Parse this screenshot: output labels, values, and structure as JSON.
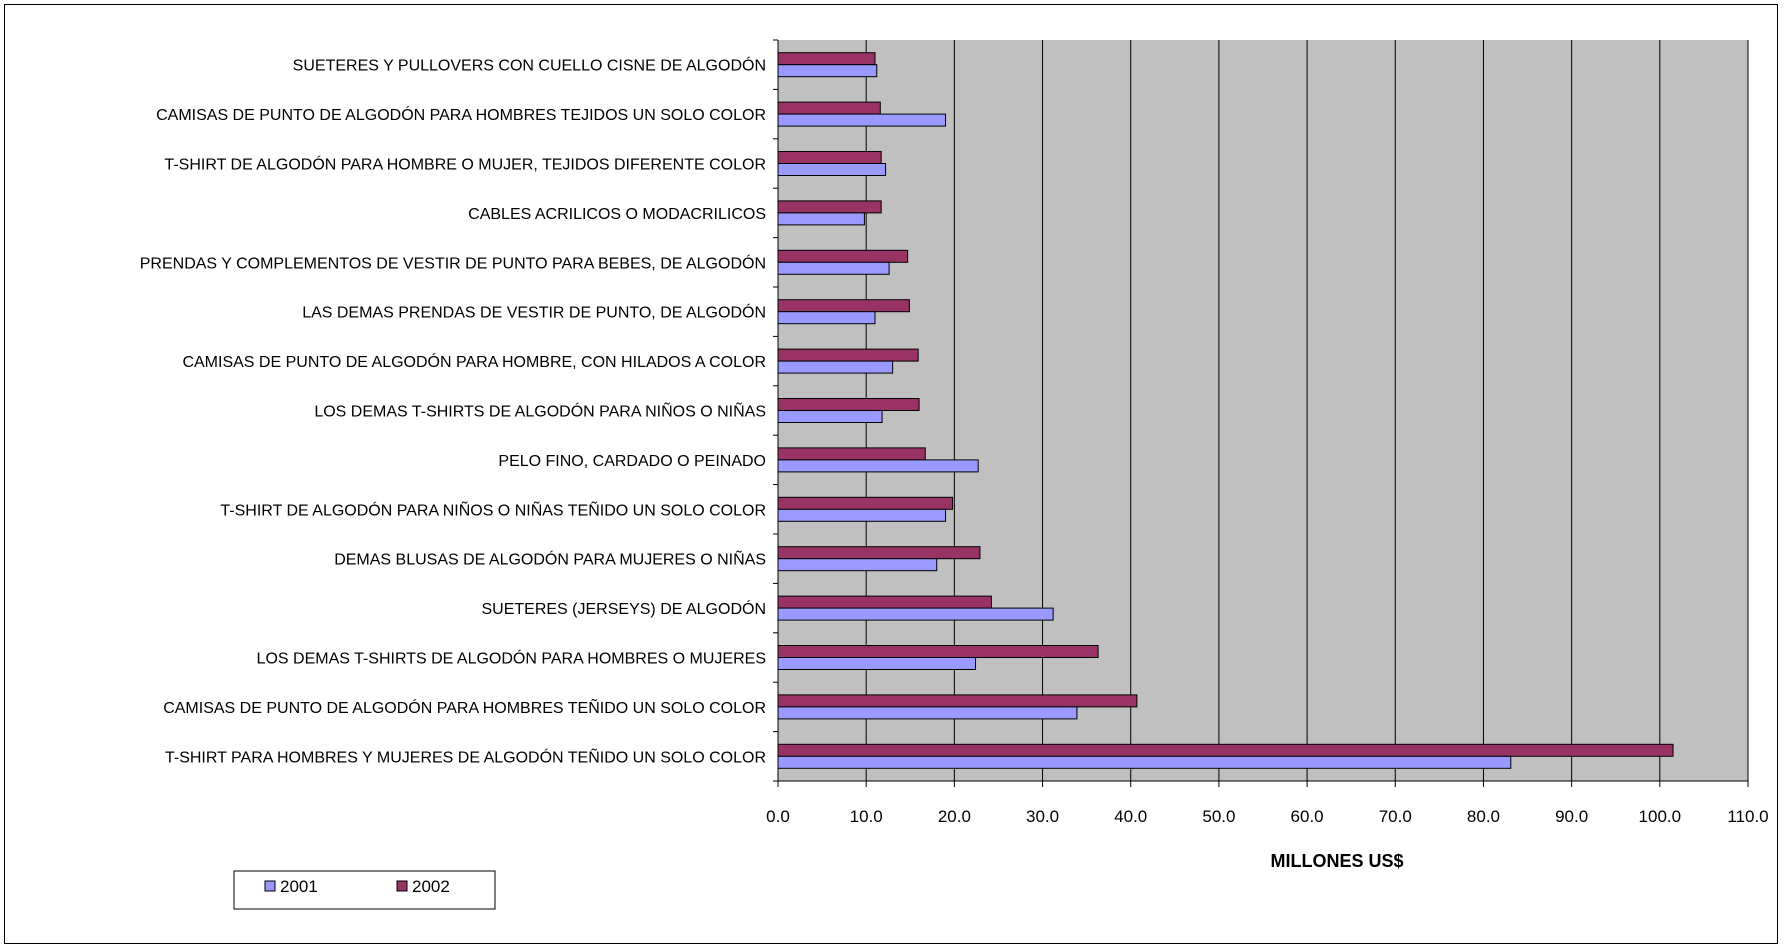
{
  "chart_data": {
    "type": "bar",
    "orientation": "horizontal",
    "categories": [
      "SUETERES Y PULLOVERS CON CUELLO CISNE DE ALGODÓN",
      "CAMISAS DE PUNTO DE ALGODÓN PARA HOMBRES TEJIDOS UN SOLO COLOR",
      "T-SHIRT DE ALGODÓN PARA HOMBRE O MUJER, TEJIDOS DIFERENTE COLOR",
      "CABLES ACRILICOS O MODACRILICOS",
      "PRENDAS Y COMPLEMENTOS DE VESTIR DE PUNTO PARA BEBES, DE ALGODÓN",
      "LAS DEMAS PRENDAS DE VESTIR DE PUNTO, DE ALGODÓN",
      "CAMISAS DE PUNTO DE ALGODÓN PARA HOMBRE, CON HILADOS A COLOR",
      "LOS DEMAS T-SHIRTS DE ALGODÓN PARA NIÑOS O NIÑAS",
      "PELO FINO, CARDADO O PEINADO",
      "T-SHIRT DE ALGODÓN PARA NIÑOS  O NIÑAS TEÑIDO UN SOLO COLOR",
      "DEMAS BLUSAS DE ALGODÓN PARA MUJERES O NIÑAS",
      "SUETERES (JERSEYS) DE ALGODÓN",
      "LOS DEMAS T-SHIRTS DE ALGODÓN PARA HOMBRES O MUJERES",
      "CAMISAS DE PUNTO DE ALGODÓN PARA HOMBRES TEÑIDO UN SOLO COLOR",
      "T-SHIRT PARA HOMBRES Y MUJERES DE ALGODÓN TEÑIDO UN SOLO COLOR"
    ],
    "series": [
      {
        "name": "2001",
        "color": "#9999ff",
        "values": [
          11.2,
          19.0,
          12.2,
          9.8,
          12.6,
          11.0,
          13.0,
          11.8,
          22.7,
          19.0,
          18.0,
          31.2,
          22.4,
          33.9,
          83.1
        ]
      },
      {
        "name": "2002",
        "color": "#993366",
        "values": [
          11.0,
          11.6,
          11.7,
          11.7,
          14.7,
          14.9,
          15.9,
          16.0,
          16.7,
          19.8,
          22.9,
          24.2,
          36.3,
          40.7,
          101.5
        ]
      }
    ],
    "xlabel": "MILLONES US$",
    "ylabel": "",
    "title": "",
    "xlim": [
      0,
      110
    ],
    "xticks": [
      "0.0",
      "10.0",
      "20.0",
      "30.0",
      "40.0",
      "50.0",
      "60.0",
      "70.0",
      "80.0",
      "90.0",
      "100.0",
      "110.0"
    ],
    "grid": "vertical",
    "plot_background": "#c0c0c0",
    "legend_position": "bottom-left"
  }
}
